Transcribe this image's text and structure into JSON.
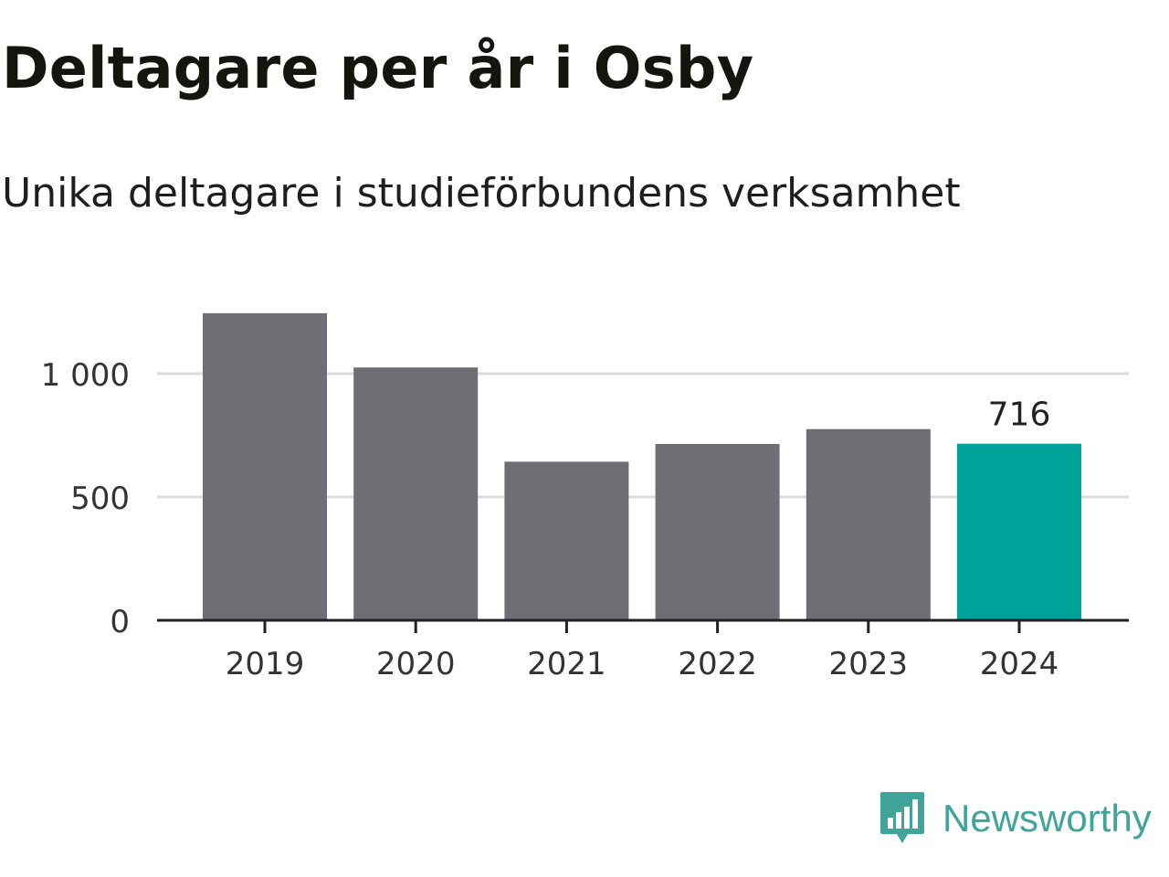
{
  "header": {
    "title": "Deltagare per år i Osby",
    "subtitle": "Unika deltagare i studieförbundens verksamhet"
  },
  "brand": {
    "name": "Newsworthy",
    "icon": "bar-chart-speech-bubble-icon",
    "color": "#40a49a"
  },
  "colors": {
    "bar": "#6f6e75",
    "highlight": "#00a39a",
    "grid": "#dddddd",
    "axis": "#222222",
    "tick_text": "#333333"
  },
  "chart_data": {
    "type": "bar",
    "title": "Deltagare per år i Osby",
    "subtitle": "Unika deltagare i studieförbundens verksamhet",
    "xlabel": "",
    "ylabel": "",
    "categories": [
      "2019",
      "2020",
      "2021",
      "2022",
      "2023",
      "2024"
    ],
    "values": [
      1245,
      1025,
      643,
      715,
      775,
      716
    ],
    "highlight_index": 5,
    "data_labels": [
      null,
      null,
      null,
      null,
      null,
      "716"
    ],
    "ylim": [
      0,
      1300
    ],
    "yticks": [
      0,
      500,
      1000
    ],
    "ytick_labels": [
      "0",
      "500",
      "1 000"
    ],
    "grid": true
  }
}
